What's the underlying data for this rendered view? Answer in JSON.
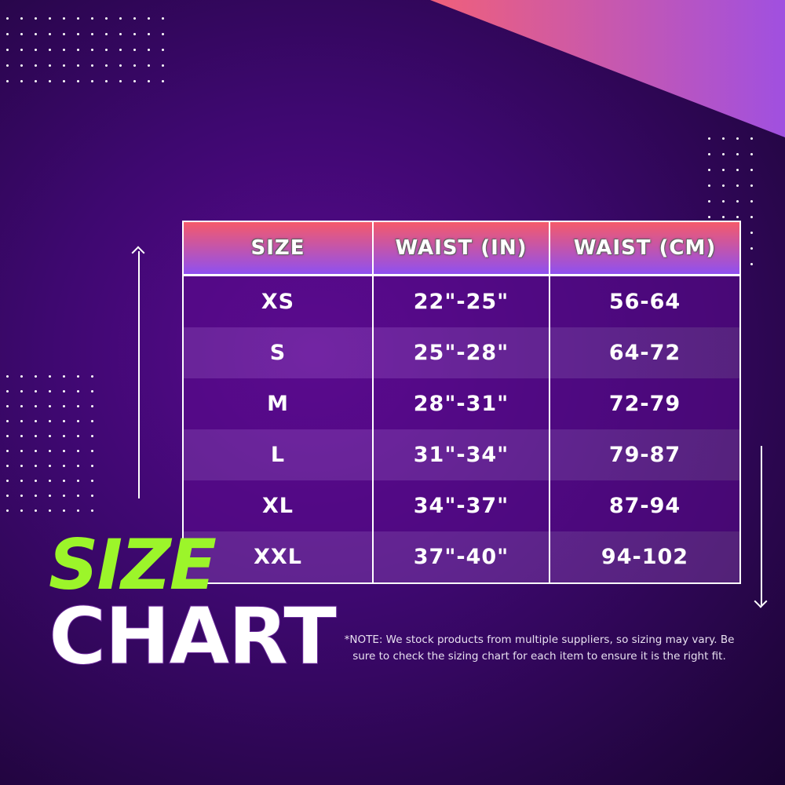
{
  "headers": [
    "SIZE",
    "WAIST (IN)",
    "WAIST (CM)"
  ],
  "rows": [
    [
      "XS",
      "22\"-25\"",
      "56-64"
    ],
    [
      "S",
      "25\"-28\"",
      "64-72"
    ],
    [
      "M",
      "28\"-31\"",
      "72-79"
    ],
    [
      "L",
      "31\"-34\"",
      "79-87"
    ],
    [
      "XL",
      "34\"-37\"",
      "87-94"
    ],
    [
      "XXL",
      "37\"-40\"",
      "94-102"
    ]
  ],
  "title_line1": "SIZE",
  "title_line2": "CHART",
  "note": "*NOTE: We stock products from multiple suppliers, so sizing may vary. Be sure to check the sizing chart for  each item to ensure it is the right fit.",
  "colors": {
    "accent_green": "#9cf52a",
    "header_top": "#f55a6a",
    "header_bottom": "#8f50f0",
    "background": "#3e0870"
  }
}
